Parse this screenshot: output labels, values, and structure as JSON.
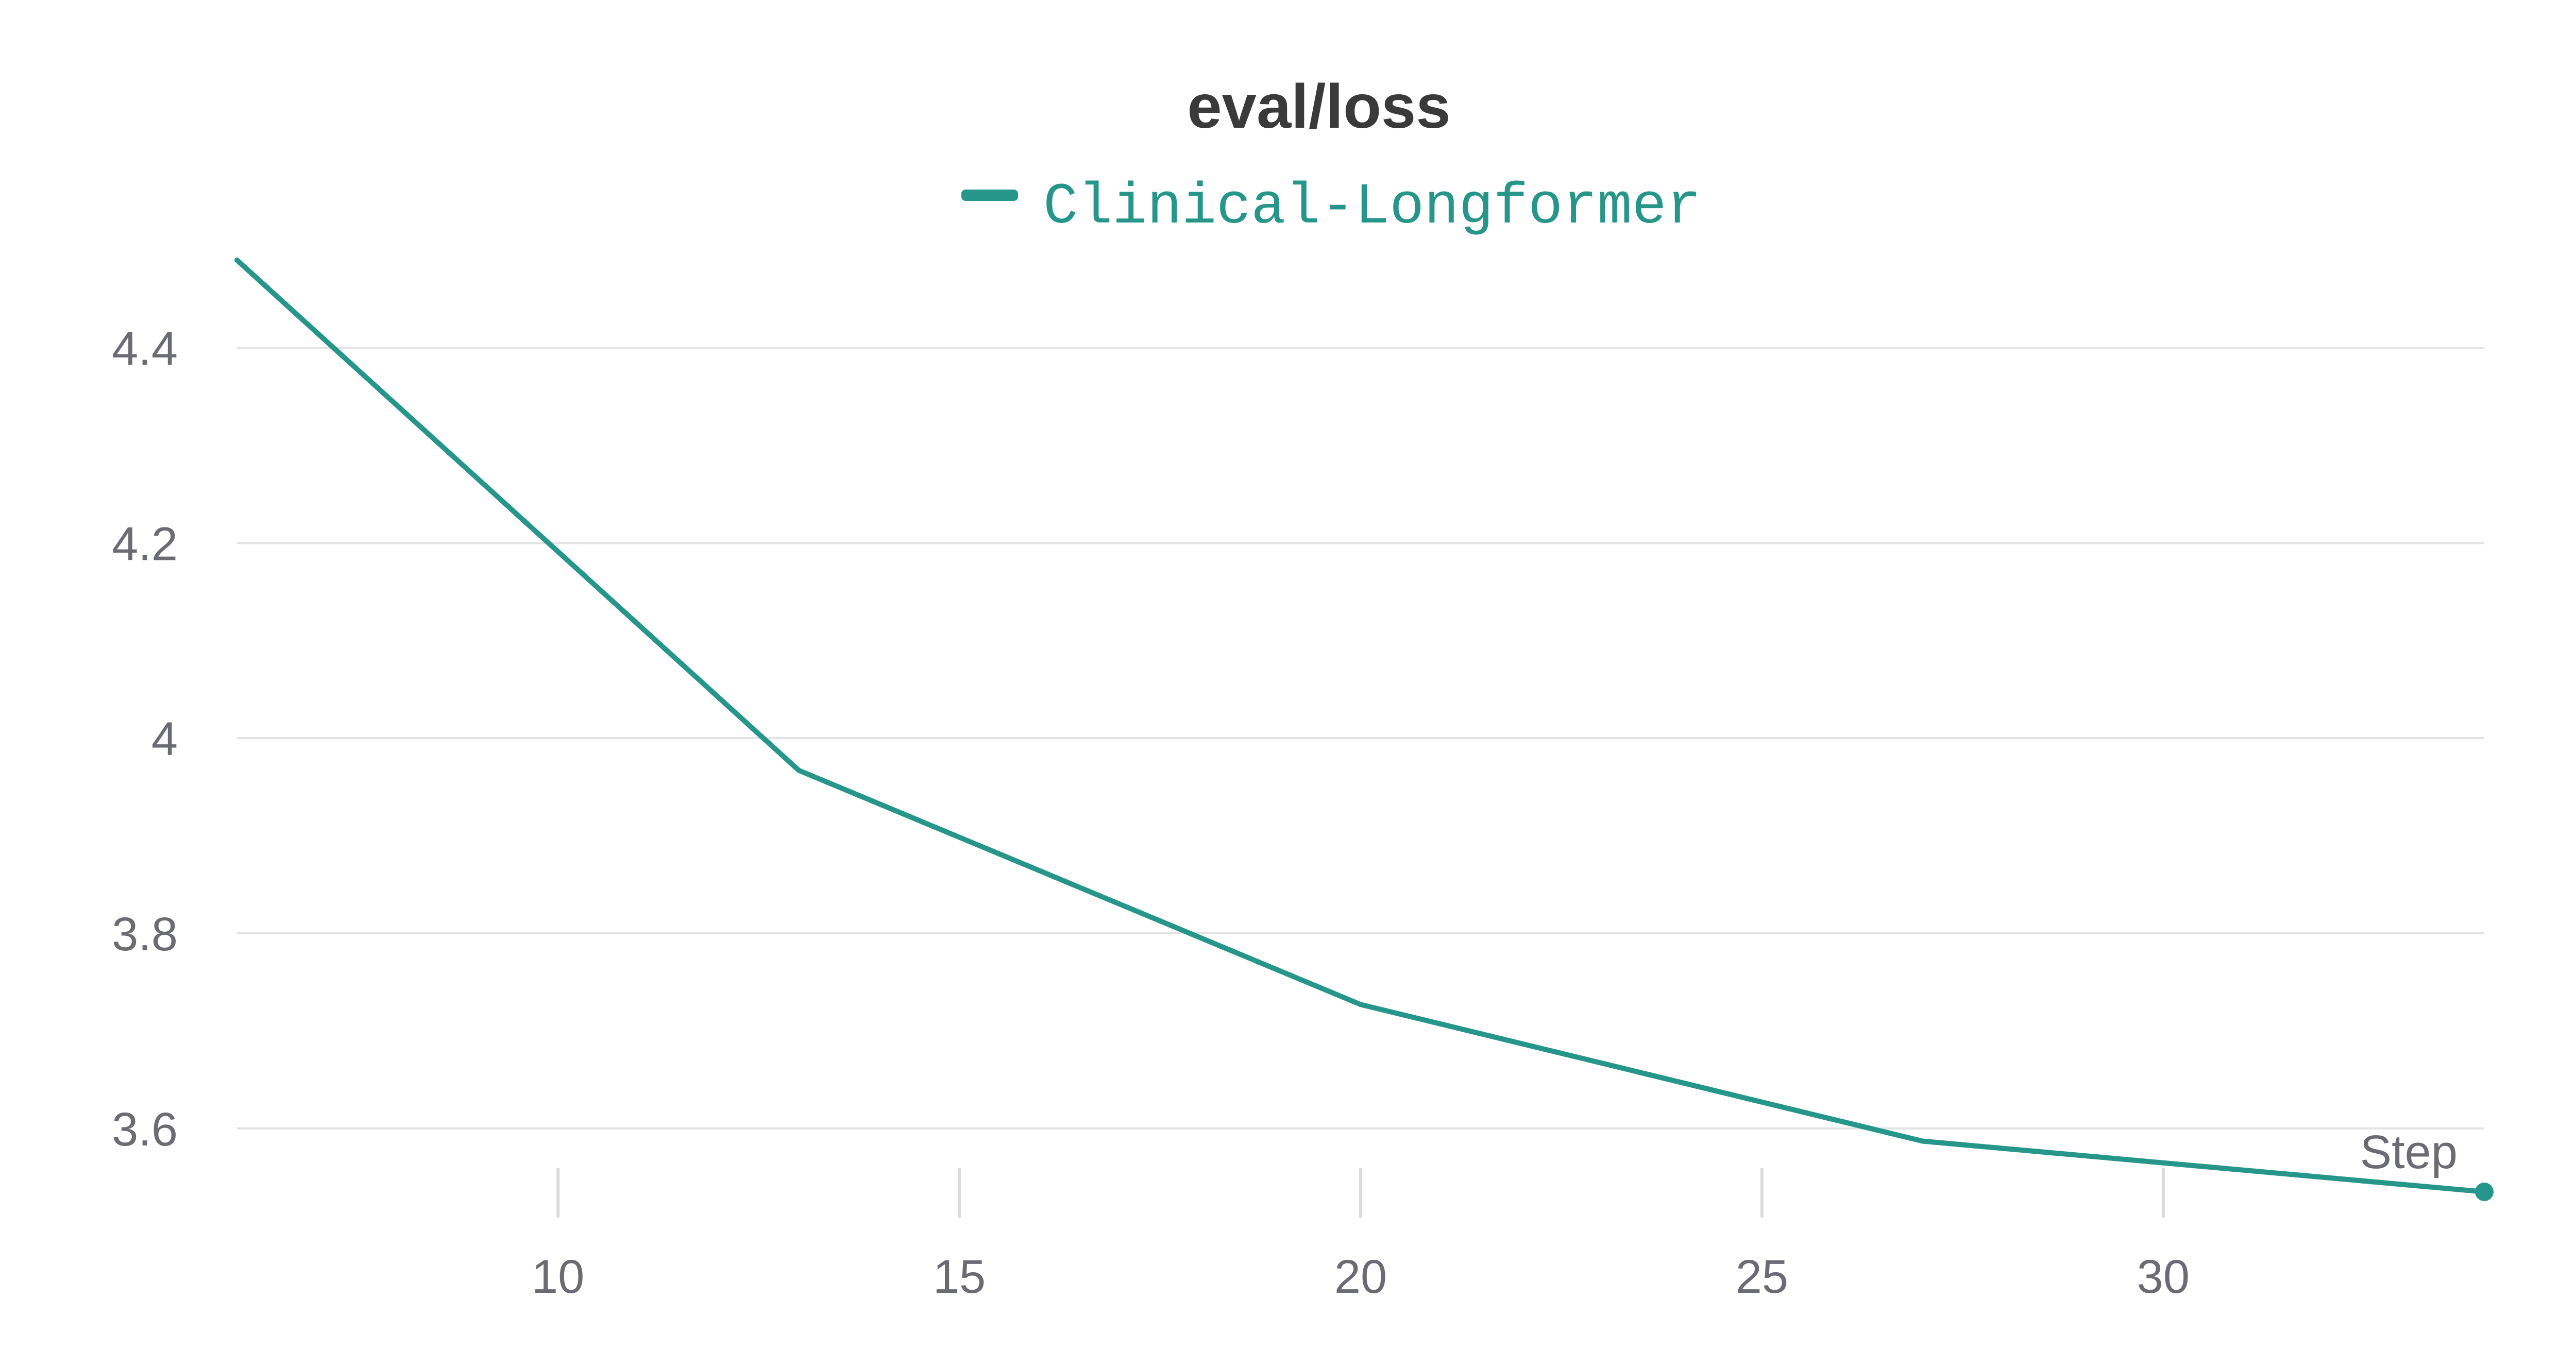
{
  "chart_data": {
    "type": "line",
    "title": "eval/loss",
    "xlabel": "Step",
    "ylabel": "",
    "legend_position": "top-center",
    "grid": true,
    "xlim": [
      6,
      34
    ],
    "ylim": [
      3.535,
      4.49
    ],
    "x_ticks": [
      10,
      15,
      20,
      25,
      30
    ],
    "y_ticks": [
      3.6,
      3.8,
      4,
      4.2,
      4.4
    ],
    "x_tick_labels": [
      "10",
      "15",
      "20",
      "25",
      "30"
    ],
    "y_tick_labels": [
      "3.6",
      "3.8",
      "4",
      "4.2",
      "4.4"
    ],
    "series": [
      {
        "name": "Clinical-Longformer",
        "color": "#26968a",
        "x": [
          6,
          13,
          20,
          27,
          34
        ],
        "y": [
          4.49,
          3.967,
          3.727,
          3.587,
          3.535
        ]
      }
    ]
  }
}
